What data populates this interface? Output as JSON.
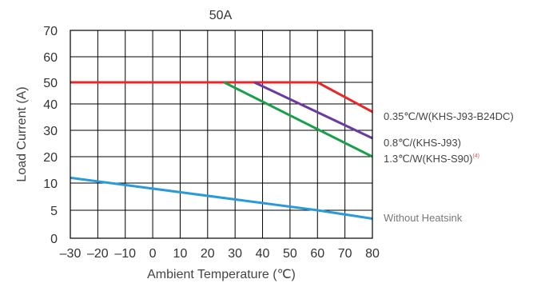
{
  "chart_data": {
    "type": "line",
    "title": "50A",
    "xlabel": "Ambient Temperature (℃)",
    "ylabel": "Load Current (A)",
    "xlim": [
      -30,
      80
    ],
    "ylim": [
      0,
      70
    ],
    "x_ticks": [
      -30,
      -20,
      -10,
      0,
      10,
      20,
      30,
      40,
      50,
      60,
      70,
      80
    ],
    "y_ticks": [
      0,
      5,
      10,
      20,
      30,
      40,
      50,
      60,
      70
    ],
    "y_tick_labels": [
      "0",
      "5",
      "10",
      "20",
      "30",
      "40",
      "50",
      "60",
      "70"
    ],
    "grid": true,
    "series": [
      {
        "name": "0.35℃/W(KHS-J93-B24DC)",
        "color": "#e8282b",
        "points": [
          [
            -30,
            50
          ],
          [
            60,
            50
          ],
          [
            80,
            37
          ]
        ]
      },
      {
        "name": "0.8℃/(KHS-J93)",
        "color": "#6a3aa0",
        "points": [
          [
            37,
            50
          ],
          [
            80,
            27
          ]
        ]
      },
      {
        "name": "1.3℃/W(KHS-S90)",
        "name_superscript": "(4)",
        "color": "#1aa04a",
        "points": [
          [
            26,
            50
          ],
          [
            80,
            20
          ]
        ]
      },
      {
        "name": "Without Heatsink",
        "color": "#2a9ad8",
        "points": [
          [
            -30,
            12
          ],
          [
            60,
            5
          ],
          [
            80,
            3.5
          ]
        ]
      }
    ]
  }
}
